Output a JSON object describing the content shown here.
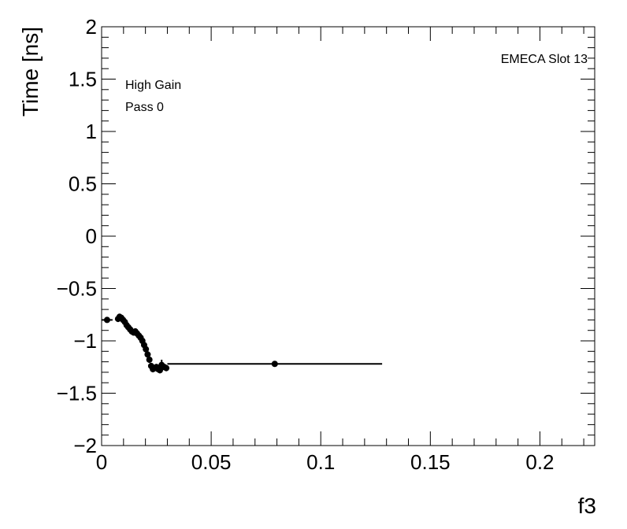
{
  "chart_data": {
    "type": "scatter",
    "title": "",
    "xlabel": "f3",
    "ylabel": "Time [ns]",
    "xlim": [
      0,
      0.225
    ],
    "ylim": [
      -2,
      2
    ],
    "x_ticks": [
      0,
      0.05,
      0.1,
      0.15,
      0.2
    ],
    "x_tick_labels": [
      "0",
      "0.05",
      "0.1",
      "0.15",
      "0.2"
    ],
    "y_ticks": [
      -2,
      -1.5,
      -1,
      -0.5,
      0,
      0.5,
      1,
      1.5,
      2
    ],
    "y_tick_labels": [
      "−2",
      "−1.5",
      "−1",
      "−0.5",
      "0",
      "0.5",
      "1",
      "1.5",
      "2"
    ],
    "annotations": {
      "top_right": "EMECA Slot 13",
      "line1": "High Gain",
      "line2": "Pass 0"
    },
    "grid": false,
    "series": [
      {
        "points": [
          {
            "x": 0.0025,
            "y": -0.8,
            "xerr": 0.0025,
            "yerr": 0.02
          },
          {
            "x": 0.0075,
            "y": -0.79,
            "xerr": 0.0003,
            "yerr": 0.03
          },
          {
            "x": 0.0082,
            "y": -0.77,
            "xerr": 0.0003,
            "yerr": 0.03
          },
          {
            "x": 0.009,
            "y": -0.78,
            "xerr": 0.0003,
            "yerr": 0.03
          },
          {
            "x": 0.0098,
            "y": -0.8,
            "xerr": 0.0003,
            "yerr": 0.03
          },
          {
            "x": 0.0106,
            "y": -0.82,
            "xerr": 0.0003,
            "yerr": 0.03
          },
          {
            "x": 0.0114,
            "y": -0.85,
            "xerr": 0.0003,
            "yerr": 0.03
          },
          {
            "x": 0.0122,
            "y": -0.87,
            "xerr": 0.0003,
            "yerr": 0.03
          },
          {
            "x": 0.013,
            "y": -0.89,
            "xerr": 0.0003,
            "yerr": 0.03
          },
          {
            "x": 0.0138,
            "y": -0.91,
            "xerr": 0.0003,
            "yerr": 0.03
          },
          {
            "x": 0.0146,
            "y": -0.92,
            "xerr": 0.0003,
            "yerr": 0.03
          },
          {
            "x": 0.0154,
            "y": -0.91,
            "xerr": 0.0003,
            "yerr": 0.03
          },
          {
            "x": 0.0162,
            "y": -0.93,
            "xerr": 0.0003,
            "yerr": 0.03
          },
          {
            "x": 0.017,
            "y": -0.95,
            "xerr": 0.0003,
            "yerr": 0.03
          },
          {
            "x": 0.0178,
            "y": -0.97,
            "xerr": 0.0003,
            "yerr": 0.03
          },
          {
            "x": 0.0186,
            "y": -1.0,
            "xerr": 0.0003,
            "yerr": 0.03
          },
          {
            "x": 0.0194,
            "y": -1.04,
            "xerr": 0.0003,
            "yerr": 0.03
          },
          {
            "x": 0.0202,
            "y": -1.08,
            "xerr": 0.0003,
            "yerr": 0.03
          },
          {
            "x": 0.021,
            "y": -1.13,
            "xerr": 0.0003,
            "yerr": 0.03
          },
          {
            "x": 0.0218,
            "y": -1.18,
            "xerr": 0.0003,
            "yerr": 0.03
          },
          {
            "x": 0.0226,
            "y": -1.24,
            "xerr": 0.0003,
            "yerr": 0.03
          },
          {
            "x": 0.0234,
            "y": -1.27,
            "xerr": 0.0003,
            "yerr": 0.03
          },
          {
            "x": 0.0242,
            "y": -1.26,
            "xerr": 0.0003,
            "yerr": 0.03
          },
          {
            "x": 0.025,
            "y": -1.25,
            "xerr": 0.0003,
            "yerr": 0.03
          },
          {
            "x": 0.0258,
            "y": -1.27,
            "xerr": 0.0003,
            "yerr": 0.03
          },
          {
            "x": 0.0266,
            "y": -1.28,
            "xerr": 0.0003,
            "yerr": 0.03
          },
          {
            "x": 0.0274,
            "y": -1.23,
            "xerr": 0.0003,
            "yerr": 0.05
          },
          {
            "x": 0.0286,
            "y": -1.25,
            "xerr": 0.0006,
            "yerr": 0.03
          },
          {
            "x": 0.0295,
            "y": -1.26,
            "xerr": 0.0006,
            "yerr": 0.03
          },
          {
            "x": 0.079,
            "y": -1.22,
            "xerr": 0.049,
            "yerr": 0.02
          }
        ]
      }
    ]
  }
}
